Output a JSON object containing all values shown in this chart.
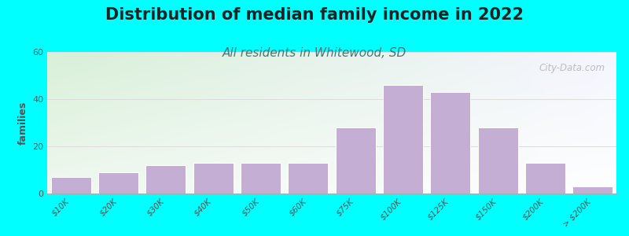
{
  "title": "Distribution of median family income in 2022",
  "subtitle": "All residents in Whitewood, SD",
  "categories": [
    "$10K",
    "$20K",
    "$30K",
    "$40K",
    "$50K",
    "$60K",
    "$75K",
    "$100K",
    "$125K",
    "$150K",
    "$200K",
    "> $200K"
  ],
  "values": [
    7,
    9,
    12,
    13,
    13,
    13,
    28,
    46,
    43,
    28,
    13,
    3
  ],
  "bar_color": "#c4aed4",
  "bar_edgecolor": "#ffffff",
  "ylabel": "families",
  "ylim": [
    0,
    60
  ],
  "yticks": [
    0,
    20,
    40,
    60
  ],
  "background_outer": "#00ffff",
  "bg_top_left": "#d8f0d8",
  "bg_top_right": "#f5f5ff",
  "bg_bottom": "#ffffff",
  "title_fontsize": 15,
  "subtitle_fontsize": 11,
  "watermark_text": "City-Data.com",
  "grid_color": "#dddddd",
  "title_color": "#222222",
  "subtitle_color": "#447777",
  "ylabel_color": "#555555",
  "tick_color": "#555555"
}
